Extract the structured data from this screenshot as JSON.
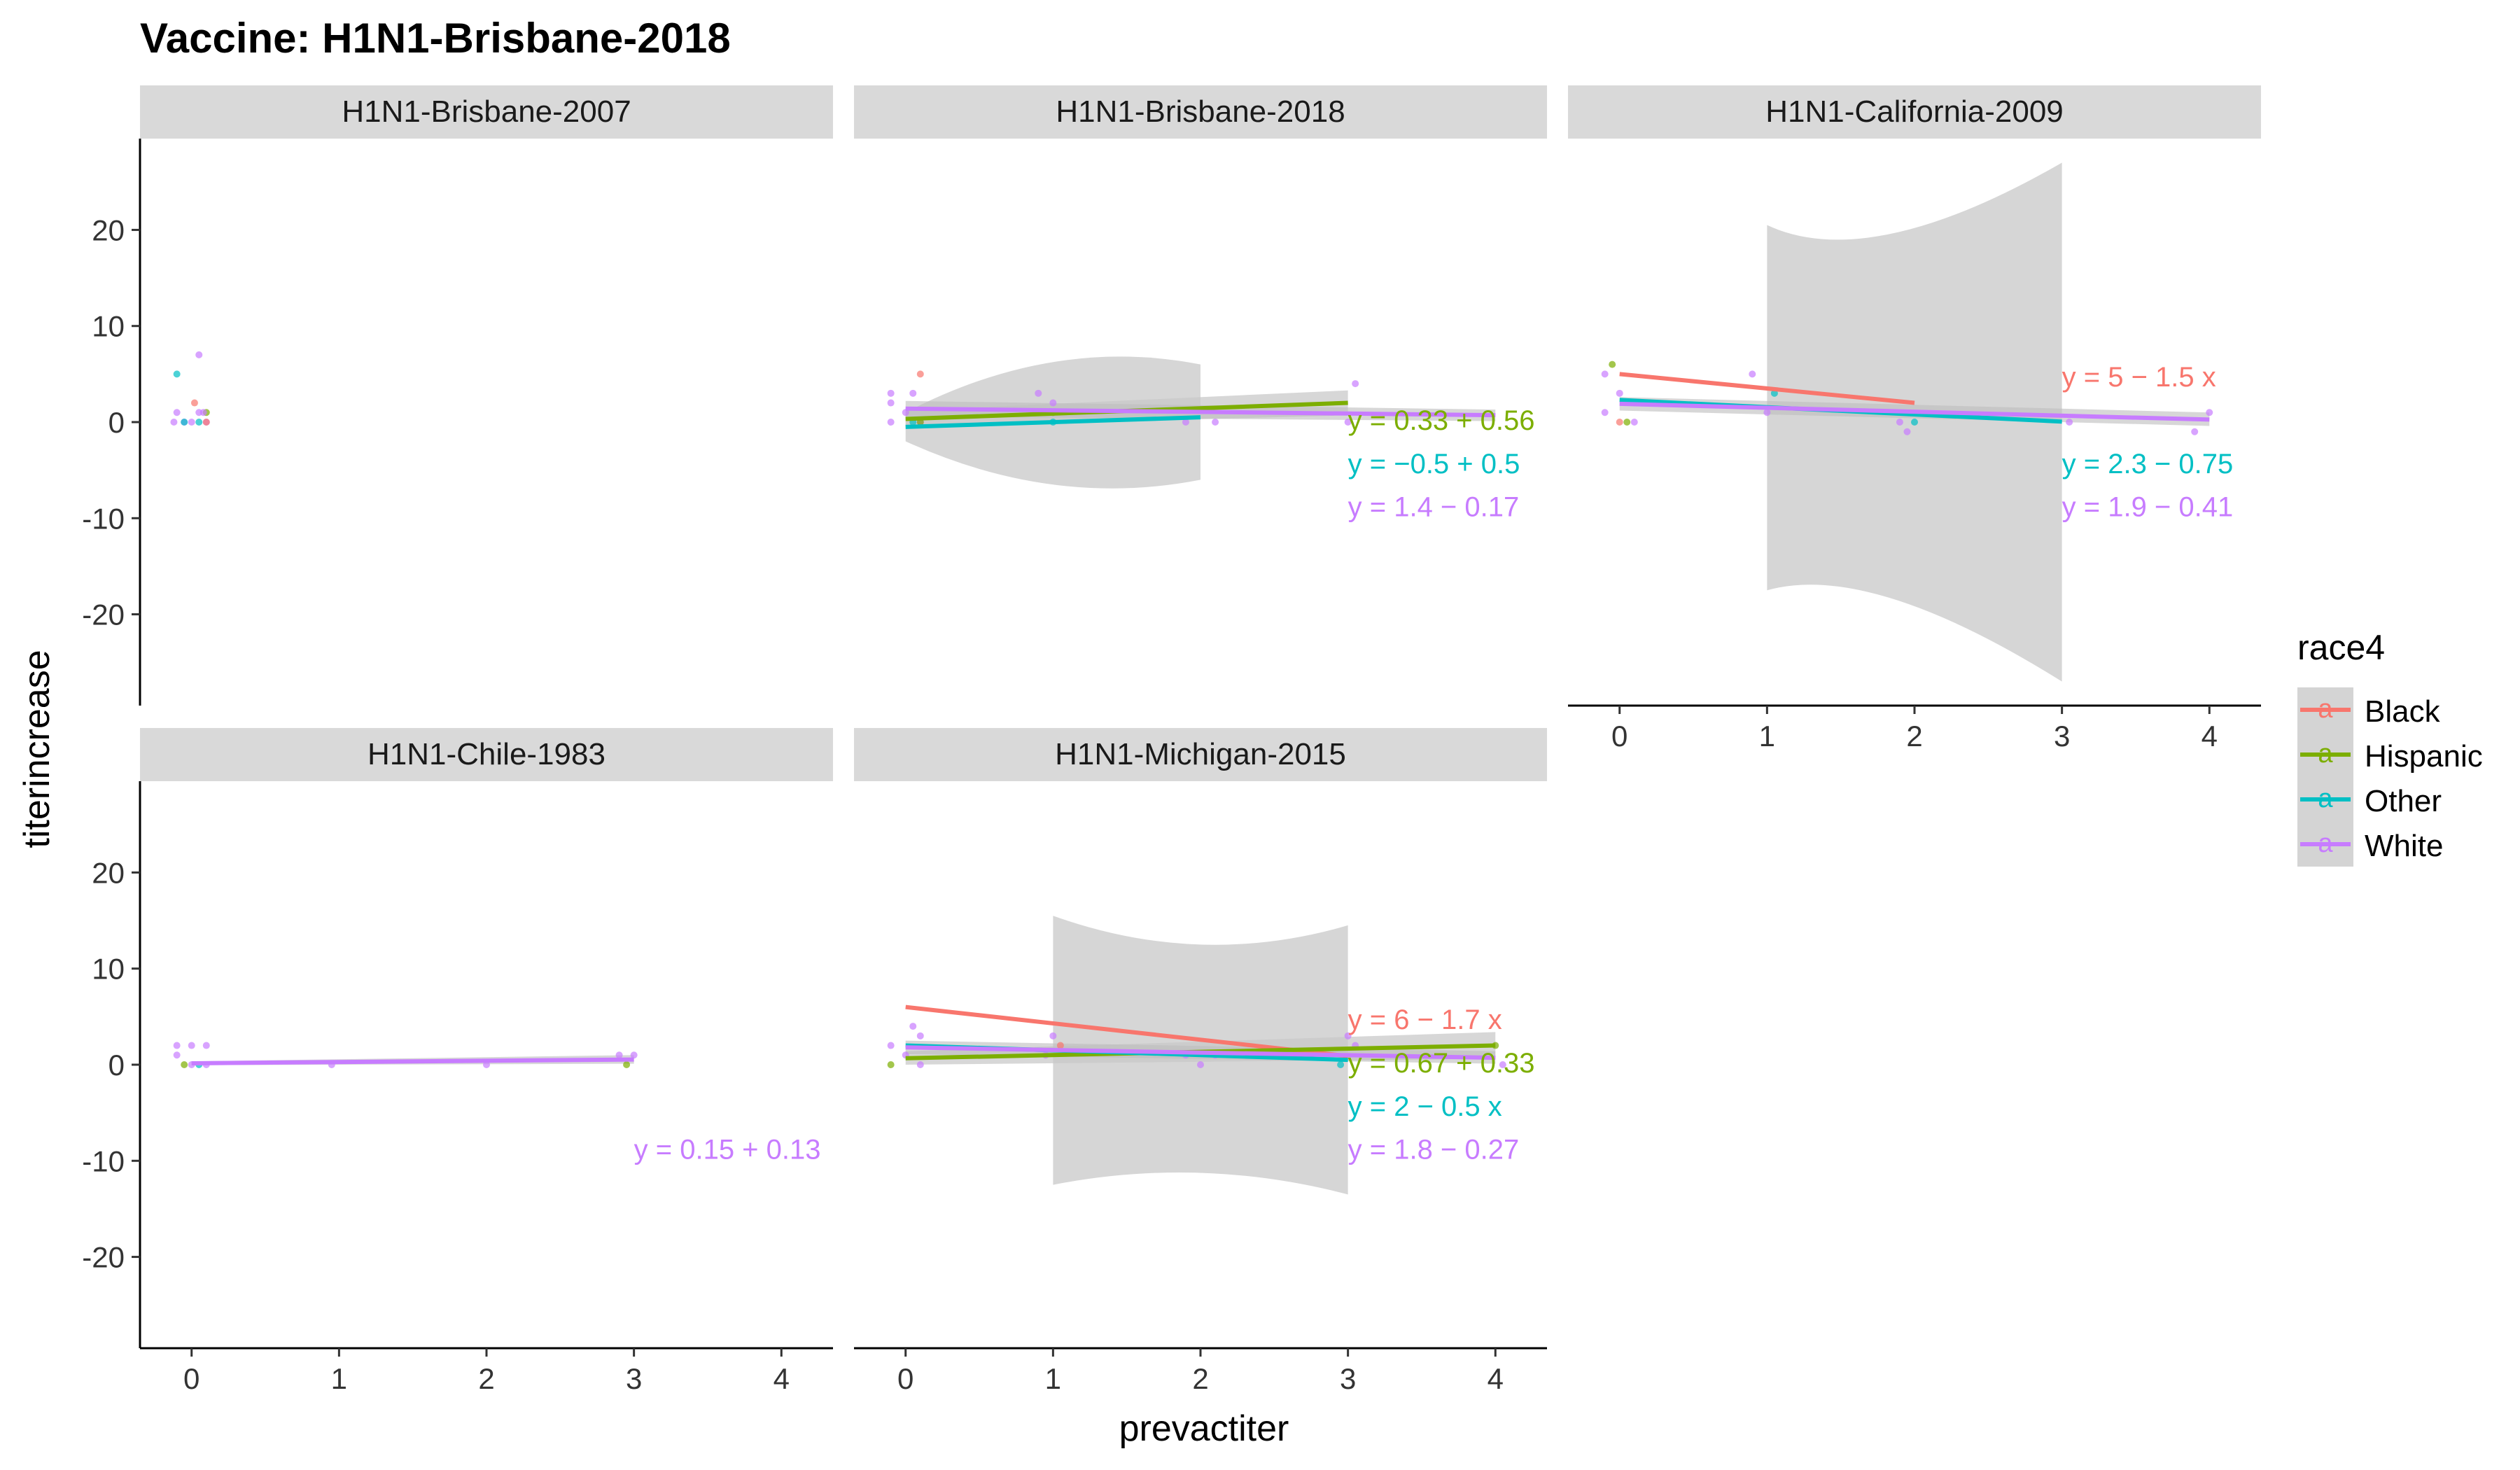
{
  "chart_data": {
    "type": "scatter",
    "title": "Vaccine: H1N1-Brisbane-2018",
    "xlabel": "prevactiter",
    "ylabel": "titerincrease",
    "xlim": [
      -0.35,
      4.35
    ],
    "ylim": [
      -29.5,
      29.5
    ],
    "xticks": [
      "0",
      "1",
      "2",
      "3",
      "4"
    ],
    "yticks": [
      "-20",
      "-10",
      "0",
      "10",
      "20"
    ],
    "grid": false,
    "legend": {
      "title": "race4",
      "position": "right",
      "entries": [
        "Black",
        "Hispanic",
        "Other",
        "White"
      ],
      "glyph": "a"
    },
    "series_colors": {
      "Black": "#F8766D",
      "Hispanic": "#7CAE00",
      "Other": "#00BFC4",
      "White": "#C77CFF"
    },
    "facets": [
      {
        "name": "H1N1-Brisbane-2007",
        "points": [
          {
            "s": "Other",
            "x": -0.1,
            "y": 5
          },
          {
            "s": "White",
            "x": 0.05,
            "y": 7
          },
          {
            "s": "Black",
            "x": 0.02,
            "y": 2
          },
          {
            "s": "White",
            "x": -0.1,
            "y": 1
          },
          {
            "s": "White",
            "x": -0.05,
            "y": 0
          },
          {
            "s": "White",
            "x": 0,
            "y": 0
          },
          {
            "s": "White",
            "x": 0.05,
            "y": 1
          },
          {
            "s": "White",
            "x": 0.1,
            "y": 0
          },
          {
            "s": "Other",
            "x": -0.05,
            "y": 0
          },
          {
            "s": "Hispanic",
            "x": 0.1,
            "y": 1
          },
          {
            "s": "Black",
            "x": 0.1,
            "y": 0
          },
          {
            "s": "White",
            "x": -0.12,
            "y": 0
          },
          {
            "s": "Other",
            "x": 0.05,
            "y": 0
          },
          {
            "s": "White",
            "x": 0.08,
            "y": 1
          }
        ],
        "fits": [],
        "equations": []
      },
      {
        "name": "H1N1-Brisbane-2018",
        "points": [
          {
            "s": "White",
            "x": -0.1,
            "y": 3
          },
          {
            "s": "White",
            "x": 0.05,
            "y": 3
          },
          {
            "s": "Black",
            "x": 0.1,
            "y": 5
          },
          {
            "s": "White",
            "x": -0.1,
            "y": 2
          },
          {
            "s": "White",
            "x": 0,
            "y": 1
          },
          {
            "s": "White",
            "x": 0.1,
            "y": 0
          },
          {
            "s": "Other",
            "x": 0.05,
            "y": 0
          },
          {
            "s": "Hispanic",
            "x": 0.1,
            "y": 0
          },
          {
            "s": "White",
            "x": -0.1,
            "y": 0
          },
          {
            "s": "White",
            "x": 0.9,
            "y": 3
          },
          {
            "s": "White",
            "x": 1,
            "y": 2
          },
          {
            "s": "Other",
            "x": 1,
            "y": 0
          },
          {
            "s": "Hispanic",
            "x": 1,
            "y": 1
          },
          {
            "s": "White",
            "x": 1.9,
            "y": 0
          },
          {
            "s": "White",
            "x": 2.1,
            "y": 0
          },
          {
            "s": "White",
            "x": 3.05,
            "y": 4
          },
          {
            "s": "White",
            "x": 3,
            "y": 0
          }
        ],
        "fits": [
          {
            "s": "Hispanic",
            "x": [
              0,
              3
            ],
            "y": [
              0.33,
              2.0
            ],
            "ci_lo": [
              -0.5,
              0.7
            ],
            "ci_hi": [
              1.2,
              3.3
            ]
          },
          {
            "s": "Other",
            "x": [
              0,
              2
            ],
            "y": [
              -0.5,
              0.5
            ],
            "ci": [
              {
                "x": 0,
                "lo": -2,
                "hi": 1.0
              },
              {
                "x": 1,
                "lo": -9,
                "hi": 9
              },
              {
                "x": 2,
                "lo": -6,
                "hi": 6
              }
            ]
          },
          {
            "s": "White",
            "x": [
              0,
              4
            ],
            "y": [
              1.4,
              0.72
            ],
            "ci_lo": [
              0.6,
              0.1
            ],
            "ci_hi": [
              2.2,
              1.3
            ]
          }
        ],
        "equations": [
          {
            "s": "Hispanic",
            "text": "y = 0.33 + 0.56"
          },
          {
            "s": "Other",
            "text": "y = −0.5 + 0.5"
          },
          {
            "s": "White",
            "text": "y = 1.4 − 0.17"
          }
        ]
      },
      {
        "name": "H1N1-California-2009",
        "points": [
          {
            "s": "Hispanic",
            "x": -0.05,
            "y": 6
          },
          {
            "s": "White",
            "x": -0.1,
            "y": 5
          },
          {
            "s": "White",
            "x": 0,
            "y": 3
          },
          {
            "s": "White",
            "x": 0.1,
            "y": 2
          },
          {
            "s": "Hispanic",
            "x": 0.05,
            "y": 0
          },
          {
            "s": "White",
            "x": -0.1,
            "y": 1
          },
          {
            "s": "Black",
            "x": 0,
            "y": 0
          },
          {
            "s": "White",
            "x": 0.1,
            "y": 0
          },
          {
            "s": "White",
            "x": 0.9,
            "y": 5
          },
          {
            "s": "Other",
            "x": 1.05,
            "y": 3
          },
          {
            "s": "White",
            "x": 1,
            "y": 1
          },
          {
            "s": "White",
            "x": 1.9,
            "y": 0
          },
          {
            "s": "White",
            "x": 1.95,
            "y": -1
          },
          {
            "s": "Other",
            "x": 2,
            "y": 0
          },
          {
            "s": "White",
            "x": 3.05,
            "y": 0
          },
          {
            "s": "White",
            "x": 3.9,
            "y": -1
          },
          {
            "s": "White",
            "x": 4,
            "y": 1
          }
        ],
        "fits": [
          {
            "s": "Black",
            "x": [
              0,
              2
            ],
            "y": [
              5,
              2
            ]
          },
          {
            "s": "Other",
            "x": [
              0,
              3
            ],
            "y": [
              2.3,
              0.05
            ],
            "ci": [
              {
                "x": 1,
                "lo": -17.5,
                "hi": 20.5
              },
              {
                "x": 1.7,
                "lo": -14.5,
                "hi": 15.5
              },
              {
                "x": 3,
                "lo": -27,
                "hi": 27
              }
            ]
          },
          {
            "s": "White",
            "x": [
              0,
              4
            ],
            "y": [
              1.9,
              0.26
            ],
            "ci_lo": [
              1.2,
              -0.4
            ],
            "ci_hi": [
              2.6,
              1.0
            ]
          }
        ],
        "equations": [
          {
            "s": "Black",
            "text": "y = 5 − 1.5 x"
          },
          {
            "s": "Other",
            "text": "y = 2.3 − 0.75"
          },
          {
            "s": "White",
            "text": "y = 1.9 − 0.41"
          }
        ]
      },
      {
        "name": "H1N1-Chile-1983",
        "points": [
          {
            "s": "White",
            "x": -0.1,
            "y": 2
          },
          {
            "s": "White",
            "x": 0,
            "y": 2
          },
          {
            "s": "White",
            "x": 0.1,
            "y": 2
          },
          {
            "s": "White",
            "x": -0.1,
            "y": 1
          },
          {
            "s": "Hispanic",
            "x": -0.05,
            "y": 0
          },
          {
            "s": "White",
            "x": 0,
            "y": 0
          },
          {
            "s": "White",
            "x": 0.1,
            "y": 0
          },
          {
            "s": "Other",
            "x": 0.05,
            "y": 0
          },
          {
            "s": "White",
            "x": 0.95,
            "y": 0
          },
          {
            "s": "White",
            "x": 2,
            "y": 0
          },
          {
            "s": "White",
            "x": 2.9,
            "y": 1
          },
          {
            "s": "White",
            "x": 3,
            "y": 1
          },
          {
            "s": "Hispanic",
            "x": 2.95,
            "y": 0
          }
        ],
        "fits": [
          {
            "s": "White",
            "x": [
              0,
              3
            ],
            "y": [
              0.15,
              0.54
            ],
            "ci_lo": [
              -0.05,
              0.1
            ],
            "ci_hi": [
              0.35,
              1.0
            ]
          }
        ],
        "equations": [
          {
            "s": "White",
            "text": "y = 0.15 + 0.13"
          }
        ]
      },
      {
        "name": "H1N1-Michigan-2015",
        "points": [
          {
            "s": "White",
            "x": -0.1,
            "y": 2
          },
          {
            "s": "White",
            "x": 0.05,
            "y": 4
          },
          {
            "s": "White",
            "x": 0.1,
            "y": 3
          },
          {
            "s": "Hispanic",
            "x": -0.1,
            "y": 0
          },
          {
            "s": "White",
            "x": 0,
            "y": 1
          },
          {
            "s": "White",
            "x": 0.1,
            "y": 0
          },
          {
            "s": "White",
            "x": 1,
            "y": 3
          },
          {
            "s": "Black",
            "x": 1.05,
            "y": 2
          },
          {
            "s": "White",
            "x": 0.95,
            "y": 1
          },
          {
            "s": "White",
            "x": 1.9,
            "y": 1
          },
          {
            "s": "White",
            "x": 2,
            "y": 0
          },
          {
            "s": "White",
            "x": 2.1,
            "y": 1
          },
          {
            "s": "White",
            "x": 3,
            "y": 3
          },
          {
            "s": "Other",
            "x": 2.95,
            "y": 0
          },
          {
            "s": "White",
            "x": 3.05,
            "y": 2
          },
          {
            "s": "Hispanic",
            "x": 4,
            "y": 2
          },
          {
            "s": "White",
            "x": 4.05,
            "y": 0
          }
        ],
        "fits": [
          {
            "s": "Black",
            "x": [
              0,
              3
            ],
            "y": [
              6,
              0.9
            ]
          },
          {
            "s": "Hispanic",
            "x": [
              0,
              4
            ],
            "y": [
              0.67,
              2.0
            ],
            "ci_lo": [
              0,
              0.6
            ],
            "ci_hi": [
              1.4,
              3.4
            ]
          },
          {
            "s": "Other",
            "x": [
              0,
              3
            ],
            "y": [
              2,
              0.5
            ],
            "ci": [
              {
                "x": 1,
                "lo": -12.5,
                "hi": 15.5
              },
              {
                "x": 2,
                "lo": -9.5,
                "hi": 10
              },
              {
                "x": 3,
                "lo": -13.5,
                "hi": 14.5
              }
            ]
          },
          {
            "s": "White",
            "x": [
              0,
              4
            ],
            "y": [
              1.8,
              0.72
            ],
            "ci_lo": [
              1.1,
              0.1
            ],
            "ci_hi": [
              2.5,
              1.4
            ]
          }
        ],
        "equations": [
          {
            "s": "Black",
            "text": "y = 6 − 1.7 x"
          },
          {
            "s": "Hispanic",
            "text": "y = 0.67 + 0.33"
          },
          {
            "s": "Other",
            "text": "y = 2 − 0.5 x"
          },
          {
            "s": "White",
            "text": "y = 1.8 − 0.27"
          }
        ]
      }
    ]
  }
}
